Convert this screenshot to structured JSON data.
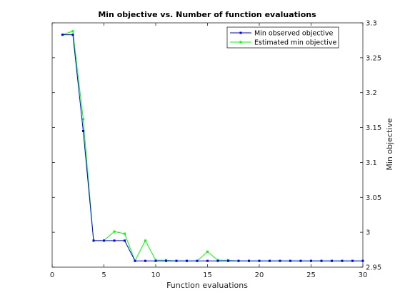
{
  "chart_data": {
    "type": "line",
    "title": "Min objective vs. Number of function evaluations",
    "xlabel": "Function evaluations",
    "ylabel": "Min objective",
    "xlim": [
      0,
      30
    ],
    "ylim": [
      2.95,
      3.3
    ],
    "xticks": [
      0,
      5,
      10,
      15,
      20,
      25,
      30
    ],
    "yticks": [
      2.95,
      3.0,
      3.05,
      3.1,
      3.15,
      3.2,
      3.25,
      3.3
    ],
    "ytick_labels": [
      "2.95",
      "3",
      "3.05",
      "3.1",
      "3.15",
      "3.2",
      "3.25",
      "3.3"
    ],
    "y_axis_side": "right",
    "legend_position": "top-right",
    "series": [
      {
        "name": "Min observed objective",
        "color": "#0000ff",
        "x": [
          1,
          2,
          3,
          4,
          5,
          6,
          7,
          8,
          9,
          10,
          11,
          12,
          13,
          14,
          15,
          16,
          17,
          18,
          19,
          20,
          21,
          22,
          23,
          24,
          25,
          26,
          27,
          28,
          29,
          30
        ],
        "values": [
          3.283,
          3.283,
          3.145,
          2.988,
          2.988,
          2.988,
          2.988,
          2.959,
          2.959,
          2.959,
          2.959,
          2.959,
          2.959,
          2.959,
          2.959,
          2.959,
          2.959,
          2.959,
          2.959,
          2.959,
          2.959,
          2.959,
          2.959,
          2.959,
          2.959,
          2.959,
          2.959,
          2.959,
          2.959,
          2.959
        ]
      },
      {
        "name": "Estimated min objective",
        "color": "#00ff00",
        "x": [
          1,
          2,
          3,
          4,
          5,
          6,
          7,
          8,
          9,
          10,
          11,
          12,
          13,
          14,
          15,
          16,
          17,
          18,
          19,
          20,
          21,
          22,
          23,
          24,
          25,
          26,
          27,
          28,
          29,
          30
        ],
        "values": [
          3.283,
          3.288,
          3.162,
          2.988,
          2.988,
          3.001,
          2.998,
          2.959,
          2.988,
          2.96,
          2.96,
          2.959,
          2.959,
          2.959,
          2.972,
          2.96,
          2.96,
          2.959,
          2.959,
          2.959,
          2.959,
          2.959,
          2.959,
          2.959,
          2.959,
          2.959,
          2.959,
          2.959,
          2.959,
          2.959
        ]
      }
    ]
  }
}
